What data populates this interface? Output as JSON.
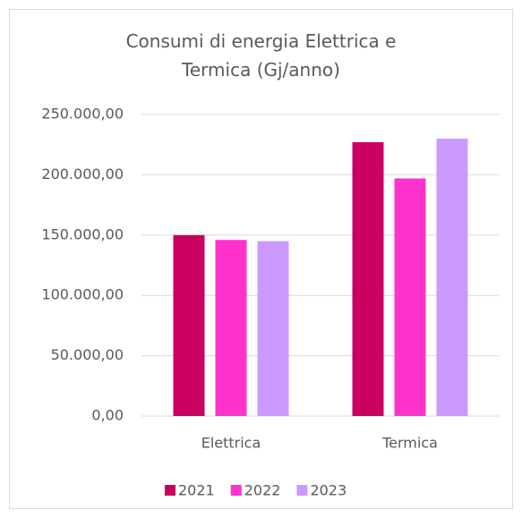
{
  "chart_data": {
    "type": "bar",
    "title": "Consumi di energia Elettrica e Termica (Gj/anno)",
    "categories": [
      "Elettrica",
      "Termica"
    ],
    "series": [
      {
        "name": "2021",
        "color": "#c8005f",
        "values": [
          150000,
          227000
        ]
      },
      {
        "name": "2022",
        "color": "#ff33cc",
        "values": [
          146000,
          197000
        ]
      },
      {
        "name": "2023",
        "color": "#cc99ff",
        "values": [
          145000,
          230000
        ]
      }
    ],
    "ylim": [
      0,
      250000
    ],
    "yticks": [
      {
        "value": 0,
        "label": "0,00"
      },
      {
        "value": 50000,
        "label": "50.000,00"
      },
      {
        "value": 100000,
        "label": "100.000,00"
      },
      {
        "value": 150000,
        "label": "150.000,00"
      },
      {
        "value": 200000,
        "label": "200.000,00"
      },
      {
        "value": 250000,
        "label": "250.000,00"
      }
    ],
    "grid": true,
    "legend": "bottom"
  }
}
